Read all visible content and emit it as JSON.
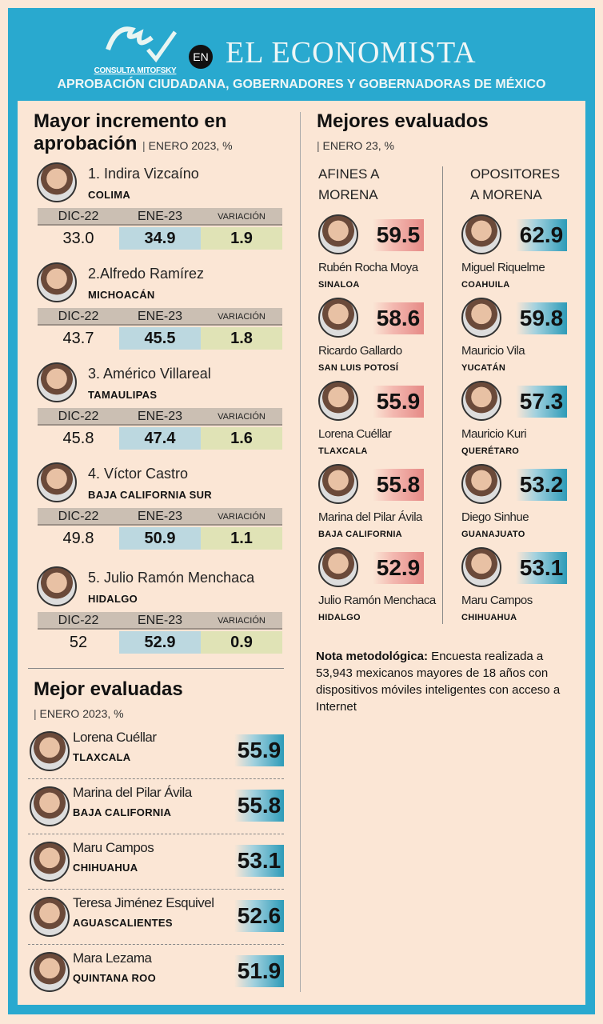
{
  "header": {
    "logo_text": "CONSULTA MITOFSKY",
    "en": "EN",
    "brand": "EL ECONOMISTA",
    "subtitle": "APROBACIÓN CIUDADANA, GOBERNADORES Y GOBERNADORAS DE MÉXICO"
  },
  "increase": {
    "title_1": "Mayor incremento en",
    "title_2": "aprobación",
    "subtitle": "ENERO 2023, %",
    "col_dic": "DIC-22",
    "col_ene": "ENE-23",
    "col_var": "VARIACIÓN",
    "items": [
      {
        "name": "1. Indira Vizcaíno",
        "state": "COLIMA",
        "dic": "33.0",
        "ene": "34.9",
        "var": "1.9"
      },
      {
        "name": "2.Alfredo Ramírez",
        "state": "MICHOACÁN",
        "dic": "43.7",
        "ene": "45.5",
        "var": "1.8"
      },
      {
        "name": "3. Américo Villareal",
        "state": "TAMAULIPAS",
        "dic": "45.8",
        "ene": "47.4",
        "var": "1.6"
      },
      {
        "name": "4. Víctor Castro",
        "state": "BAJA CALIFORNIA SUR",
        "dic": "49.8",
        "ene": "50.9",
        "var": "1.1"
      },
      {
        "name": "5. Julio Ramón Menchaca",
        "state": "HIDALGO",
        "dic": "52",
        "ene": "52.9",
        "var": "0.9"
      }
    ]
  },
  "women": {
    "title": "Mejor evaluadas",
    "subtitle": "ENERO 2023, %",
    "items": [
      {
        "name": "Lorena Cuéllar",
        "state": "TLAXCALA",
        "value": "55.9"
      },
      {
        "name": "Marina del Pilar Ávila",
        "state": "BAJA CALIFORNIA",
        "value": "55.8"
      },
      {
        "name": "Maru Campos",
        "state": "CHIHUAHUA",
        "value": "53.1"
      },
      {
        "name": "Teresa Jiménez Esquivel",
        "state": "AGUASCALIENTES",
        "value": "52.6"
      },
      {
        "name": "Mara Lezama",
        "state": "QUINTANA ROO",
        "value": "51.9"
      }
    ]
  },
  "best": {
    "title": "Mejores evaluados",
    "subtitle": "ENERO 23, %",
    "left_header_1": "AFINES A",
    "left_header_2": "MORENA",
    "right_header_1": "OPOSITORES",
    "right_header_2": "A MORENA",
    "left": [
      {
        "name": "Rubén Rocha Moya",
        "state": "SINALOA",
        "value": "59.5"
      },
      {
        "name": "Ricardo Gallardo",
        "state": "SAN LUIS POTOSÍ",
        "value": "58.6"
      },
      {
        "name": "Lorena Cuéllar",
        "state": "TLAXCALA",
        "value": "55.9"
      },
      {
        "name": "Marina del Pilar Ávila",
        "state": "BAJA CALIFORNIA",
        "value": "55.8"
      },
      {
        "name": "Julio Ramón Menchaca",
        "state": "HIDALGO",
        "value": "52.9"
      }
    ],
    "right": [
      {
        "name": "Miguel Riquelme",
        "state": "COAHUILA",
        "value": "62.9"
      },
      {
        "name": "Mauricio Vila",
        "state": "YUCATÁN",
        "value": "59.8"
      },
      {
        "name": "Mauricio Kuri",
        "state": "QUERÉTARO",
        "value": "57.3"
      },
      {
        "name": "Diego Sinhue",
        "state": "GUANAJUATO",
        "value": "53.2"
      },
      {
        "name": "Maru Campos",
        "state": "CHIHUAHUA",
        "value": "53.1"
      }
    ]
  },
  "note": {
    "label": "Nota metodológica:",
    "text": " Encuesta realizada a 53,943  mexicanos mayores de 18 años con dispositivos móviles inteligentes con acceso a Internet"
  },
  "colors": {
    "frame": "#29a9cf",
    "background": "#fbe6d5",
    "ene_cell": "#bcd8e0",
    "var_cell": "#e0e3b6",
    "afines": "#e68a86",
    "opositores": "#2d9bb8"
  }
}
